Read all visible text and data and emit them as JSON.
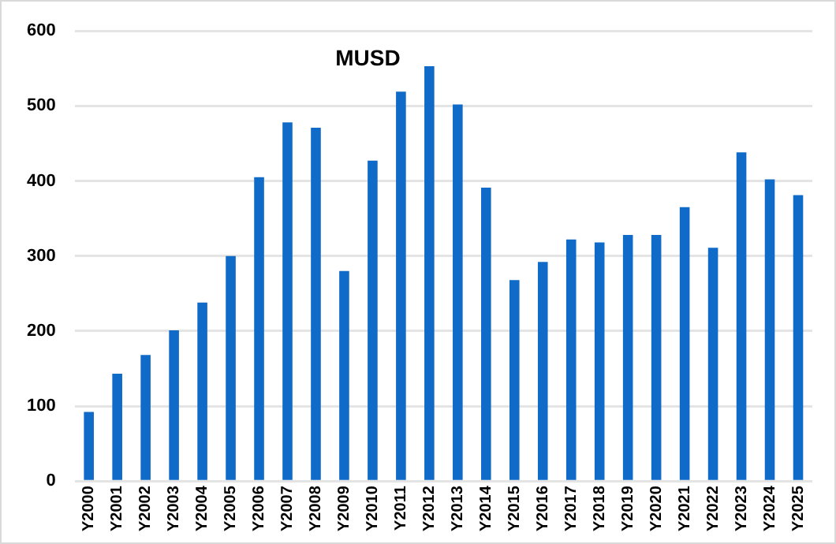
{
  "chart_data": {
    "type": "bar",
    "title": "MUSD",
    "categories": [
      "Y2000",
      "Y2001",
      "Y2002",
      "Y2003",
      "Y2004",
      "Y2005",
      "Y2006",
      "Y2007",
      "Y2008",
      "Y2009",
      "Y2010",
      "Y2011",
      "Y2012",
      "Y2013",
      "Y2014",
      "Y2015",
      "Y2016",
      "Y2017",
      "Y2018",
      "Y2019",
      "Y2020",
      "Y2021",
      "Y2022",
      "Y2023",
      "Y2024",
      "Y2025"
    ],
    "values": [
      92,
      143,
      168,
      201,
      238,
      300,
      405,
      478,
      471,
      280,
      427,
      519,
      553,
      502,
      391,
      268,
      292,
      322,
      318,
      328,
      328,
      365,
      311,
      438,
      402,
      381
    ],
    "color": "#0f6ac8",
    "ylim": [
      0,
      600
    ],
    "yticks": [
      0,
      100,
      200,
      300,
      400,
      500,
      600
    ],
    "grid": "y",
    "legend": false
  }
}
